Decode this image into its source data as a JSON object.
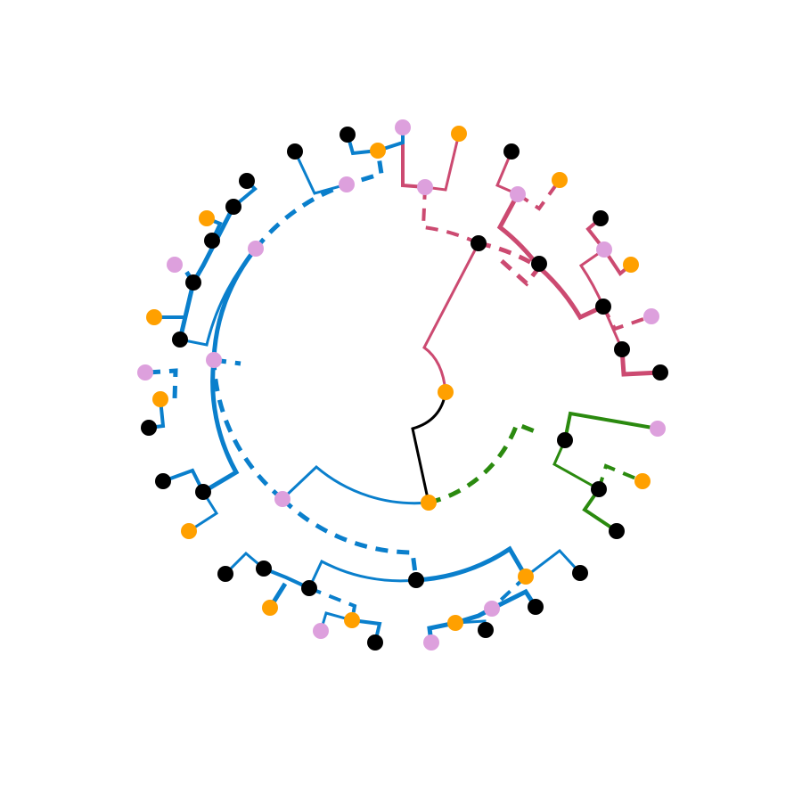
{
  "colors": {
    "root": "#000000",
    "clade_blue": "#0a7fcc",
    "clade_red": "#cc4a71",
    "clade_green": "#2b8a0f",
    "node_black": "#000000",
    "node_orange": "#ffa000",
    "node_pink": "#dda0dd",
    "background": "#ffffff"
  },
  "tree": {
    "type": "circular-phylogram",
    "clades": [
      "blue",
      "red",
      "green"
    ],
    "node_kinds": [
      "black",
      "orange",
      "pink"
    ],
    "edge_styles": [
      "solid",
      "dashed"
    ]
  }
}
